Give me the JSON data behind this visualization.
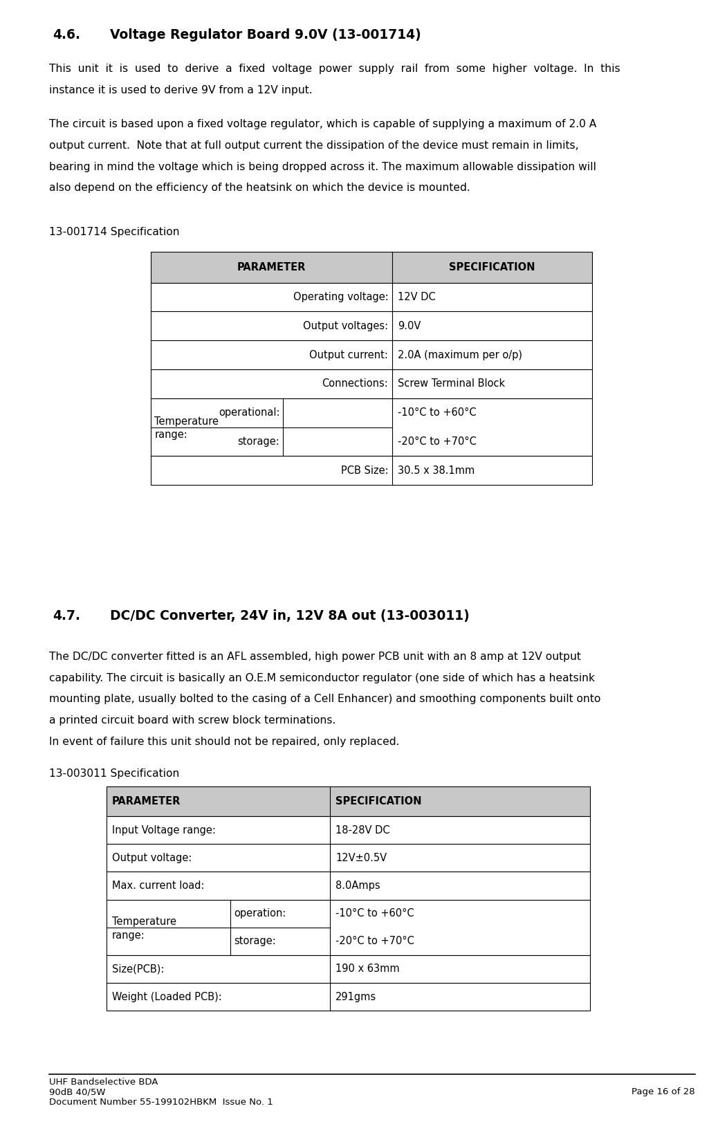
{
  "background_color": "#ffffff",
  "ml": 0.068,
  "mr": 0.968,
  "section1_heading": "4.6.",
  "section1_title": "Voltage Regulator Board 9.0V (13-001714)",
  "para1_lines": [
    "This  unit  it  is  used  to  derive  a  fixed  voltage  power  supply  rail  from  some  higher  voltage.  In  this",
    "instance it is used to derive 9V from a 12V input."
  ],
  "para2_lines": [
    "The circuit is based upon a fixed voltage regulator, which is capable of supplying a maximum of 2.0 A",
    "output current.  Note that at full output current the dissipation of the device must remain in limits,",
    "bearing in mind the voltage which is being dropped across it. The maximum allowable dissipation will",
    "also depend on the efficiency of the heatsink on which the device is mounted."
  ],
  "spec1_label": "13-001714 Specification",
  "section2_heading": "4.7.",
  "section2_title": "DC/DC Converter, 24V in, 12V 8A out (13-003011)",
  "para3_lines": [
    "The DC/DC converter fitted is an AFL assembled, high power PCB unit with an 8 amp at 12V output",
    "capability. The circuit is basically an O.E.M semiconductor regulator (one side of which has a heatsink",
    "mounting plate, usually bolted to the casing of a Cell Enhancer) and smoothing components built onto",
    "a printed circuit board with screw block terminations.",
    "In event of failure this unit should not be repaired, only replaced."
  ],
  "spec2_label": "13-003011 Specification",
  "footer_line1": "UHF Bandselective BDA",
  "footer_line2": "90dB 40/5W",
  "footer_line3": "Document Number 55-199102HBKM  Issue No. 1",
  "footer_right": "Page 16 of 28",
  "body_font_size": 11.2,
  "heading_font_size": 13.5,
  "spec_label_font_size": 11.2,
  "table_font_size": 10.5,
  "footer_font_size": 9.5,
  "table1_header_gray": "#c8c8c8",
  "table2_header_gray": "#c8c8c8"
}
